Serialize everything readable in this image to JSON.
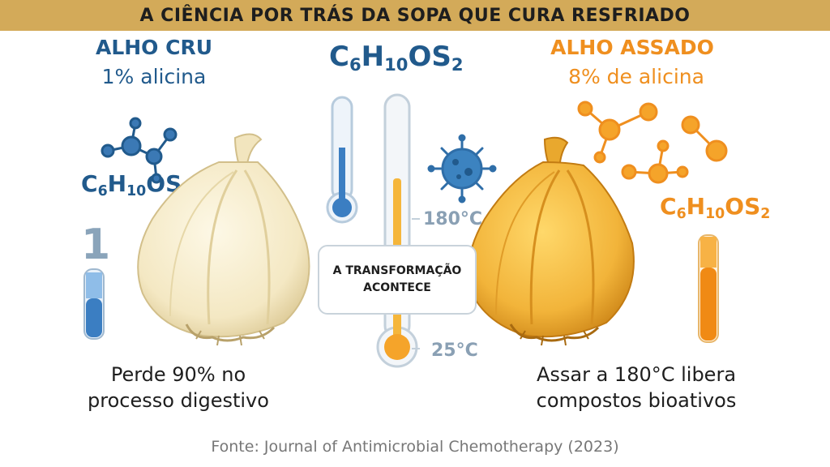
{
  "title": "A CIÊNCIA POR TRÁS DA SOPA QUE CURA RESFRIADO",
  "raw": {
    "heading": "ALHO CRU",
    "subheading": "1% alicina",
    "tube_number": "1",
    "description_line1": "Perde 90% no",
    "description_line2": "processo digestivo",
    "color": "#215a8c"
  },
  "roasted": {
    "heading": "ALHO ASSADO",
    "subheading": "8% de alicina",
    "description_line1": "Assar a 180°C libera",
    "description_line2": "compostos bioativos",
    "color": "#ef8f1f"
  },
  "formula": {
    "c": "C",
    "c_sub": "6",
    "h": "H",
    "h_sub": "10",
    "os": "OS",
    "s_sub": "2"
  },
  "center": {
    "temp_high": "180°C",
    "temp_low": "25°C",
    "bubble_line1": "A TRANSFORMAÇÃO",
    "bubble_line2": "ACONTECE"
  },
  "source": "Fonte: Journal of Antimicrobial Chemotherapy (2023)",
  "icons": [
    "molecule-icon",
    "thermometer-icon",
    "virus-icon",
    "garlic-icon",
    "test-tube-icon"
  ]
}
